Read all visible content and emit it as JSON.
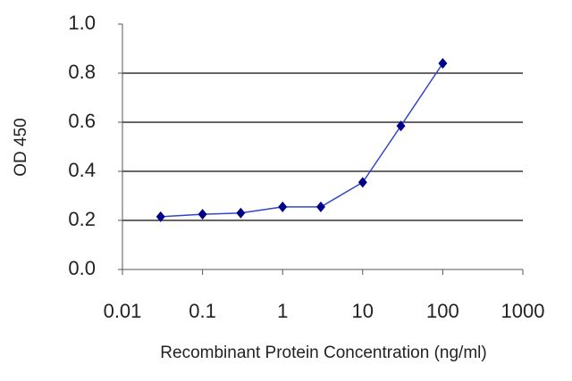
{
  "chart_data": {
    "type": "line",
    "x_label": "Recombinant Protein Concentration (ng/ml)",
    "y_label": "OD 450",
    "x": [
      0.03,
      0.1,
      0.3,
      1,
      3,
      10,
      30,
      100
    ],
    "series": [
      {
        "color": "#00008b",
        "values": [
          0.215,
          0.225,
          0.23,
          0.255,
          0.255,
          0.355,
          0.585,
          0.84
        ]
      }
    ],
    "xscale": "log",
    "xlim": [
      0.01,
      1000
    ],
    "xticks": [
      0.01,
      0.1,
      1,
      10,
      100,
      1000
    ],
    "ylim": [
      0,
      1
    ],
    "yticks": [
      {
        "value": 0,
        "label": "0.0"
      },
      {
        "value": 0.2,
        "label": "0.2"
      },
      {
        "value": 0.4,
        "label": "0.4"
      },
      {
        "value": 0.6,
        "label": "0.6"
      },
      {
        "value": 0.8,
        "label": "0.8"
      },
      {
        "value": 1,
        "label": "1.0"
      }
    ],
    "grid": true
  }
}
